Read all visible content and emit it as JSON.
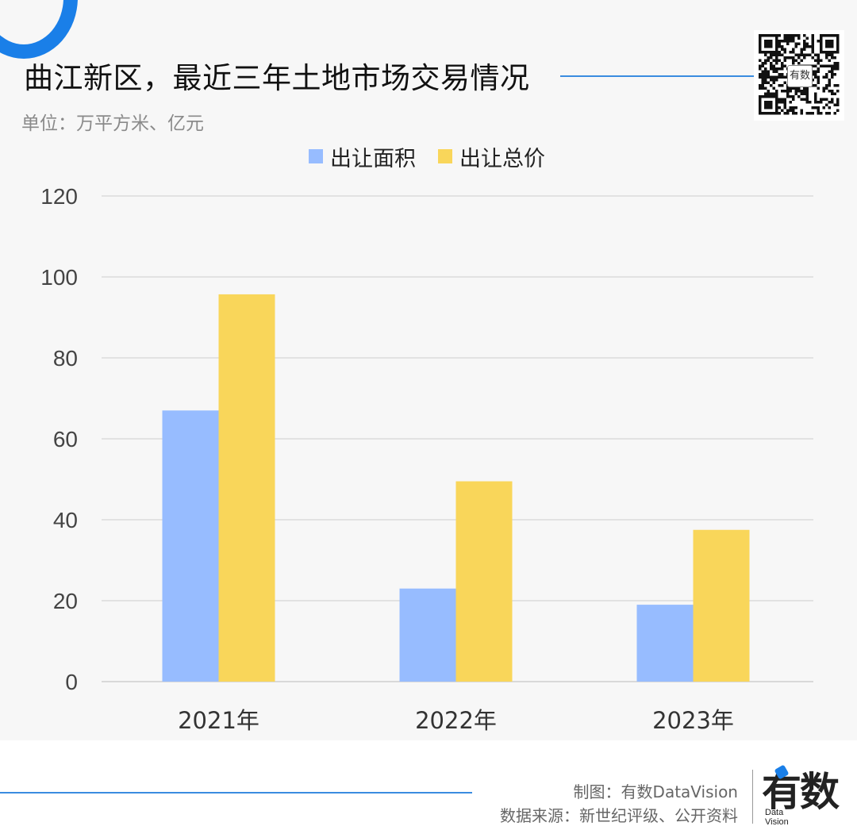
{
  "header": {
    "title": "曲江新区，最近三年土地市场交易情况",
    "unit": "单位：万平方米、亿元"
  },
  "qr": {
    "badge": "有数"
  },
  "footer": {
    "credit": "制图：有数DataVision",
    "source": "数据来源：新世纪评级、公开资料",
    "logo_main": "有数",
    "logo_sub_1": "Data",
    "logo_sub_2": "Vision"
  },
  "colors": {
    "area": "#97bcff",
    "price": "#f9d65a",
    "accent": "#1a7fe8",
    "grid": "#dcdcdc",
    "panel": "#f7f7f7"
  },
  "chart_data": {
    "type": "bar",
    "title": "曲江新区，最近三年土地市场交易情况",
    "categories": [
      "2021年",
      "2022年",
      "2023年"
    ],
    "series": [
      {
        "name": "出让面积",
        "values": [
          67,
          23,
          19
        ]
      },
      {
        "name": "出让总价",
        "values": [
          95.7,
          49.5,
          37.5
        ]
      }
    ],
    "ylim": [
      0,
      120
    ],
    "yticks": [
      0,
      20,
      40,
      60,
      80,
      100,
      120
    ],
    "grid": true,
    "legend": "top-center"
  }
}
